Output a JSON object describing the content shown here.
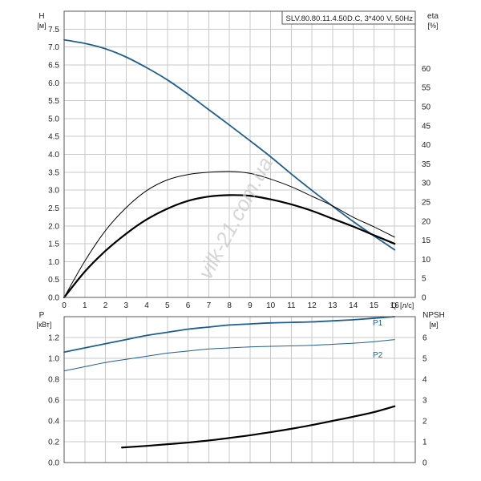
{
  "chart_data": [
    {
      "type": "line",
      "title": "SLV.80.80.11.4.50D.C, 3*400 V, 50Hz",
      "xlabel": "Q [л/с]",
      "x_unit": "[л/с]",
      "x_axis_name": "Q",
      "ylabel_left": "H",
      "ylabel_left_unit": "[м]",
      "ylabel_right": "eta",
      "ylabel_right_unit": "[%]",
      "xlim": [
        0,
        17
      ],
      "ylim_left": [
        0,
        8
      ],
      "ylim_right": [
        0,
        75
      ],
      "x_ticks": [
        0,
        1,
        2,
        3,
        4,
        5,
        6,
        7,
        8,
        9,
        10,
        11,
        12,
        13,
        14,
        15,
        16
      ],
      "y_left_ticks": [
        "0.0",
        "0.5",
        "1.0",
        "1.5",
        "2.0",
        "2.5",
        "3.0",
        "3.5",
        "4.0",
        "4.5",
        "5.0",
        "5.5",
        "6.0",
        "6.5",
        "7.0",
        "7.5"
      ],
      "y_right_ticks": [
        "0",
        "5",
        "10",
        "15",
        "20",
        "25",
        "30",
        "35",
        "40",
        "45",
        "50",
        "55",
        "60"
      ],
      "grid": true,
      "series": [
        {
          "axis": "left",
          "color": "#1d5f91",
          "width": 1.8,
          "x": [
            0,
            1,
            2,
            3,
            4,
            5,
            6,
            7,
            8,
            9,
            10,
            11,
            12,
            13,
            14,
            15,
            16
          ],
          "y": [
            7.2,
            7.1,
            6.95,
            6.72,
            6.42,
            6.08,
            5.68,
            5.25,
            4.82,
            4.38,
            3.93,
            3.45,
            2.99,
            2.55,
            2.12,
            1.72,
            1.33
          ]
        },
        {
          "axis": "right",
          "color": "#000000",
          "width": 1.0,
          "x": [
            0,
            1,
            2,
            3,
            4,
            5,
            6,
            7,
            8,
            9,
            10,
            11,
            12,
            13,
            14,
            15,
            16
          ],
          "y": [
            0,
            9.5,
            17.5,
            23.5,
            28,
            30.8,
            32.2,
            32.8,
            33,
            32.5,
            31,
            29,
            26.5,
            24,
            21,
            18.5,
            15.8
          ]
        },
        {
          "axis": "left",
          "color": "#000000",
          "width": 2.2,
          "x": [
            0,
            1,
            2,
            3,
            4,
            5,
            6,
            7,
            8,
            9,
            10,
            11,
            12,
            13,
            14,
            15,
            16
          ],
          "y": [
            0,
            0.72,
            1.3,
            1.78,
            2.18,
            2.48,
            2.7,
            2.82,
            2.86,
            2.84,
            2.74,
            2.6,
            2.42,
            2.2,
            1.98,
            1.74,
            1.5
          ]
        }
      ]
    },
    {
      "type": "line",
      "xlim": [
        0,
        17
      ],
      "ylabel_left": "P",
      "ylabel_left_unit": "[кВт]",
      "ylabel_right": "NPSH",
      "ylabel_right_unit": "[м]",
      "ylim_left": [
        0,
        1.4
      ],
      "ylim_right": [
        0,
        7
      ],
      "y_left_ticks": [
        "0.0",
        "0.2",
        "0.4",
        "0.6",
        "0.8",
        "1.0",
        "1.2"
      ],
      "y_right_ticks": [
        "0",
        "1",
        "2",
        "3",
        "4",
        "5",
        "6"
      ],
      "grid": true,
      "series": [
        {
          "name": "P1",
          "axis": "left",
          "color": "#1d5f91",
          "width": 1.8,
          "x": [
            0,
            1,
            2,
            3,
            4,
            5,
            6,
            7,
            8,
            9,
            10,
            11,
            12,
            13,
            14,
            15,
            16
          ],
          "y": [
            1.06,
            1.1,
            1.14,
            1.18,
            1.22,
            1.25,
            1.28,
            1.3,
            1.32,
            1.33,
            1.34,
            1.345,
            1.35,
            1.36,
            1.37,
            1.385,
            1.4
          ]
        },
        {
          "name": "P2",
          "axis": "left",
          "color": "#1d5f91",
          "width": 1.0,
          "x": [
            0,
            1,
            2,
            3,
            4,
            5,
            6,
            7,
            8,
            9,
            10,
            11,
            12,
            13,
            14,
            15,
            16
          ],
          "y": [
            0.88,
            0.92,
            0.96,
            0.99,
            1.02,
            1.05,
            1.07,
            1.09,
            1.1,
            1.11,
            1.115,
            1.12,
            1.125,
            1.135,
            1.145,
            1.16,
            1.18
          ]
        },
        {
          "name": "NPSH",
          "axis": "right",
          "color": "#000000",
          "width": 2.2,
          "x": [
            2.8,
            4,
            5,
            6,
            7,
            8,
            9,
            10,
            11,
            12,
            13,
            14,
            15,
            16
          ],
          "y": [
            0.72,
            0.8,
            0.88,
            0.96,
            1.06,
            1.18,
            1.31,
            1.46,
            1.62,
            1.8,
            2,
            2.2,
            2.42,
            2.7
          ]
        }
      ]
    }
  ],
  "watermark": "vilk-21.com.ua"
}
